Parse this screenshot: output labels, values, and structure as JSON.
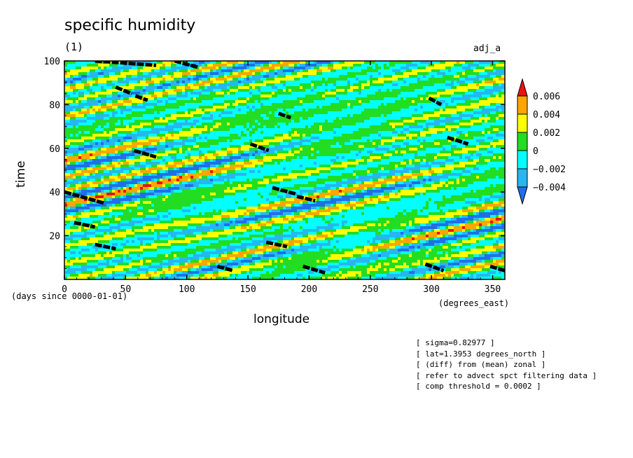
{
  "chart_data": {
    "type": "heatmap",
    "title": "specific humidity",
    "subtitle": "(1)",
    "run_name": "adj_a",
    "xlabel": "longitude",
    "xunits": "(degrees_east)",
    "ylabel": "time",
    "yunits": "(days since 0000-01-01)",
    "xlim": [
      0,
      360
    ],
    "ylim": [
      0,
      100
    ],
    "x_ticks": [
      0,
      50,
      100,
      150,
      200,
      250,
      300,
      350
    ],
    "y_ticks": [
      20,
      40,
      60,
      80,
      100
    ],
    "colorbar": {
      "levels": [
        -0.004,
        -0.002,
        0,
        0.002,
        0.004,
        0.006
      ],
      "labels": [
        "0.006",
        "0.004",
        "0.002",
        "0",
        "−0.002",
        "−0.004"
      ],
      "colors": [
        "#1f6fe8",
        "#27b6f0",
        "#00ffff",
        "#22dd22",
        "#ffff00",
        "#ffa500",
        "#ee1111"
      ]
    },
    "features": [
      {
        "type": "black-streaks",
        "x": [
          25,
          75
        ],
        "y": [
          100,
          98
        ]
      },
      {
        "type": "black-streaks",
        "x": [
          90,
          110
        ],
        "y": [
          100,
          97
        ]
      },
      {
        "type": "black-streaks",
        "x": [
          42,
          55
        ],
        "y": [
          88,
          85
        ]
      },
      {
        "type": "black-streaks",
        "x": [
          58,
          68
        ],
        "y": [
          84,
          82
        ]
      },
      {
        "type": "black-streaks",
        "x": [
          175,
          185
        ],
        "y": [
          76,
          74
        ]
      },
      {
        "type": "black-streaks",
        "x": [
          298,
          308
        ],
        "y": [
          83,
          80
        ]
      },
      {
        "type": "black-streaks",
        "x": [
          57,
          75
        ],
        "y": [
          59,
          56
        ]
      },
      {
        "type": "black-streaks",
        "x": [
          152,
          167
        ],
        "y": [
          62,
          59
        ]
      },
      {
        "type": "black-streaks",
        "x": [
          313,
          330
        ],
        "y": [
          65,
          62
        ]
      },
      {
        "type": "black-streaks",
        "x": [
          0,
          32
        ],
        "y": [
          40,
          35
        ]
      },
      {
        "type": "black-streaks",
        "x": [
          170,
          190
        ],
        "y": [
          42,
          39
        ]
      },
      {
        "type": "black-streaks",
        "x": [
          190,
          205
        ],
        "y": [
          38,
          36
        ]
      },
      {
        "type": "black-streaks",
        "x": [
          8,
          25
        ],
        "y": [
          26,
          24
        ]
      },
      {
        "type": "black-streaks",
        "x": [
          25,
          42
        ],
        "y": [
          16,
          14
        ]
      },
      {
        "type": "black-streaks",
        "x": [
          165,
          182
        ],
        "y": [
          17,
          15
        ]
      },
      {
        "type": "black-streaks",
        "x": [
          125,
          138
        ],
        "y": [
          6,
          4
        ]
      },
      {
        "type": "black-streaks",
        "x": [
          195,
          213
        ],
        "y": [
          6,
          3
        ]
      },
      {
        "type": "black-streaks",
        "x": [
          295,
          310
        ],
        "y": [
          7,
          4
        ]
      },
      {
        "type": "black-streaks",
        "x": [
          348,
          360
        ],
        "y": [
          6,
          4
        ]
      }
    ]
  },
  "notes": [
    "[ sigma=0.82977 ]",
    "[ lat=1.3953 degrees_north ]",
    "[ (diff) from (mean) zonal ]",
    "[ refer to advect spct filtering data ]",
    "[ comp threshold = 0.0002 ]"
  ]
}
